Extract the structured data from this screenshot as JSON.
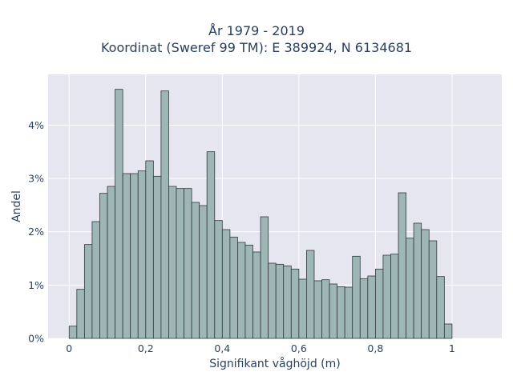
{
  "chart_data": {
    "type": "bar",
    "title": "År 1979 - 2019",
    "subtitle": "Koordinat (Sweref 99 TM): E 389924, N 6134681",
    "xlabel": "Signifikant våghöjd (m)",
    "ylabel": "Andel",
    "bin_width": 0.02,
    "bin_start": 0.0,
    "xlim": [
      -0.055,
      1.13
    ],
    "ylim": [
      0,
      4.95
    ],
    "x_ticks": [
      {
        "value": 0,
        "label": "0"
      },
      {
        "value": 0.2,
        "label": "0,2"
      },
      {
        "value": 0.4,
        "label": "0,4"
      },
      {
        "value": 0.6,
        "label": "0,6"
      },
      {
        "value": 0.8,
        "label": "0,8"
      },
      {
        "value": 1.0,
        "label": "1"
      }
    ],
    "y_ticks": [
      {
        "value": 0,
        "label": "0%"
      },
      {
        "value": 1,
        "label": "1%"
      },
      {
        "value": 2,
        "label": "2%"
      },
      {
        "value": 3,
        "label": "3%"
      },
      {
        "value": 4,
        "label": "4%"
      }
    ],
    "values": [
      0.23,
      0.92,
      1.76,
      2.19,
      2.72,
      2.85,
      4.67,
      3.09,
      3.09,
      3.14,
      3.33,
      3.04,
      4.64,
      2.85,
      2.81,
      2.81,
      2.55,
      2.49,
      3.5,
      2.21,
      2.04,
      1.9,
      1.8,
      1.75,
      1.62,
      2.28,
      1.41,
      1.39,
      1.36,
      1.3,
      1.11,
      1.65,
      1.08,
      1.1,
      1.02,
      0.97,
      0.96,
      1.54,
      1.12,
      1.17,
      1.3,
      1.56,
      1.58,
      2.73,
      1.88,
      2.16,
      2.04,
      1.83,
      1.16,
      0.27
    ],
    "unit": "%",
    "grid": true,
    "legend": "none",
    "colors": {
      "bar_fill": "#9fb6b6",
      "bar_stroke": "#2f3a3a",
      "plot_bg": "#e5e6ef",
      "grid": "#ffffff",
      "text": "#2a3f5f"
    }
  }
}
